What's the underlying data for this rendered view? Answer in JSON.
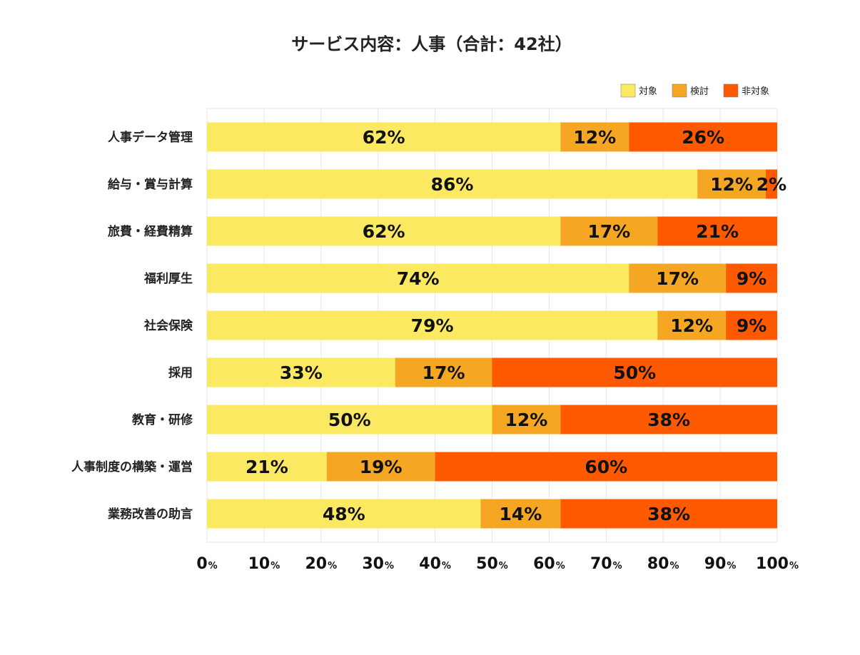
{
  "chart_data": {
    "type": "bar",
    "orientation": "horizontal",
    "stacked": true,
    "title": "サービス内容：人事（合計：42社）",
    "categories": [
      "人事データ管理",
      "給与・賞与計算",
      "旅費・経費精算",
      "福利厚生",
      "社会保険",
      "採用",
      "教育・研修",
      "人事制度の構築・運営",
      "業務改善の助言"
    ],
    "series": [
      {
        "name": "対象",
        "color": "#FBE961",
        "values": [
          62,
          86,
          62,
          74,
          79,
          33,
          50,
          21,
          48
        ]
      },
      {
        "name": "検討",
        "color": "#F5A623",
        "values": [
          12,
          12,
          17,
          17,
          12,
          17,
          12,
          19,
          14
        ]
      },
      {
        "name": "非対象",
        "color": "#FF5A00",
        "values": [
          26,
          2,
          21,
          9,
          9,
          50,
          38,
          60,
          38
        ]
      }
    ],
    "value_suffix": "%",
    "xlim": [
      0,
      100
    ],
    "x_ticks": [
      {
        "value": 0,
        "num": "0",
        "unit": "%"
      },
      {
        "value": 10,
        "num": "10",
        "unit": "%"
      },
      {
        "value": 20,
        "num": "20",
        "unit": "%"
      },
      {
        "value": 30,
        "num": "30",
        "unit": "%"
      },
      {
        "value": 40,
        "num": "40",
        "unit": "%"
      },
      {
        "value": 50,
        "num": "50",
        "unit": "%"
      },
      {
        "value": 60,
        "num": "60",
        "unit": "%"
      },
      {
        "value": 70,
        "num": "70",
        "unit": "%"
      },
      {
        "value": 80,
        "num": "80",
        "unit": "%"
      },
      {
        "value": 90,
        "num": "90",
        "unit": "%"
      },
      {
        "value": 100,
        "num": "100",
        "unit": "%"
      }
    ],
    "grid": true,
    "legend_position": "top-right",
    "gridline_color": "#e6e6e6"
  }
}
